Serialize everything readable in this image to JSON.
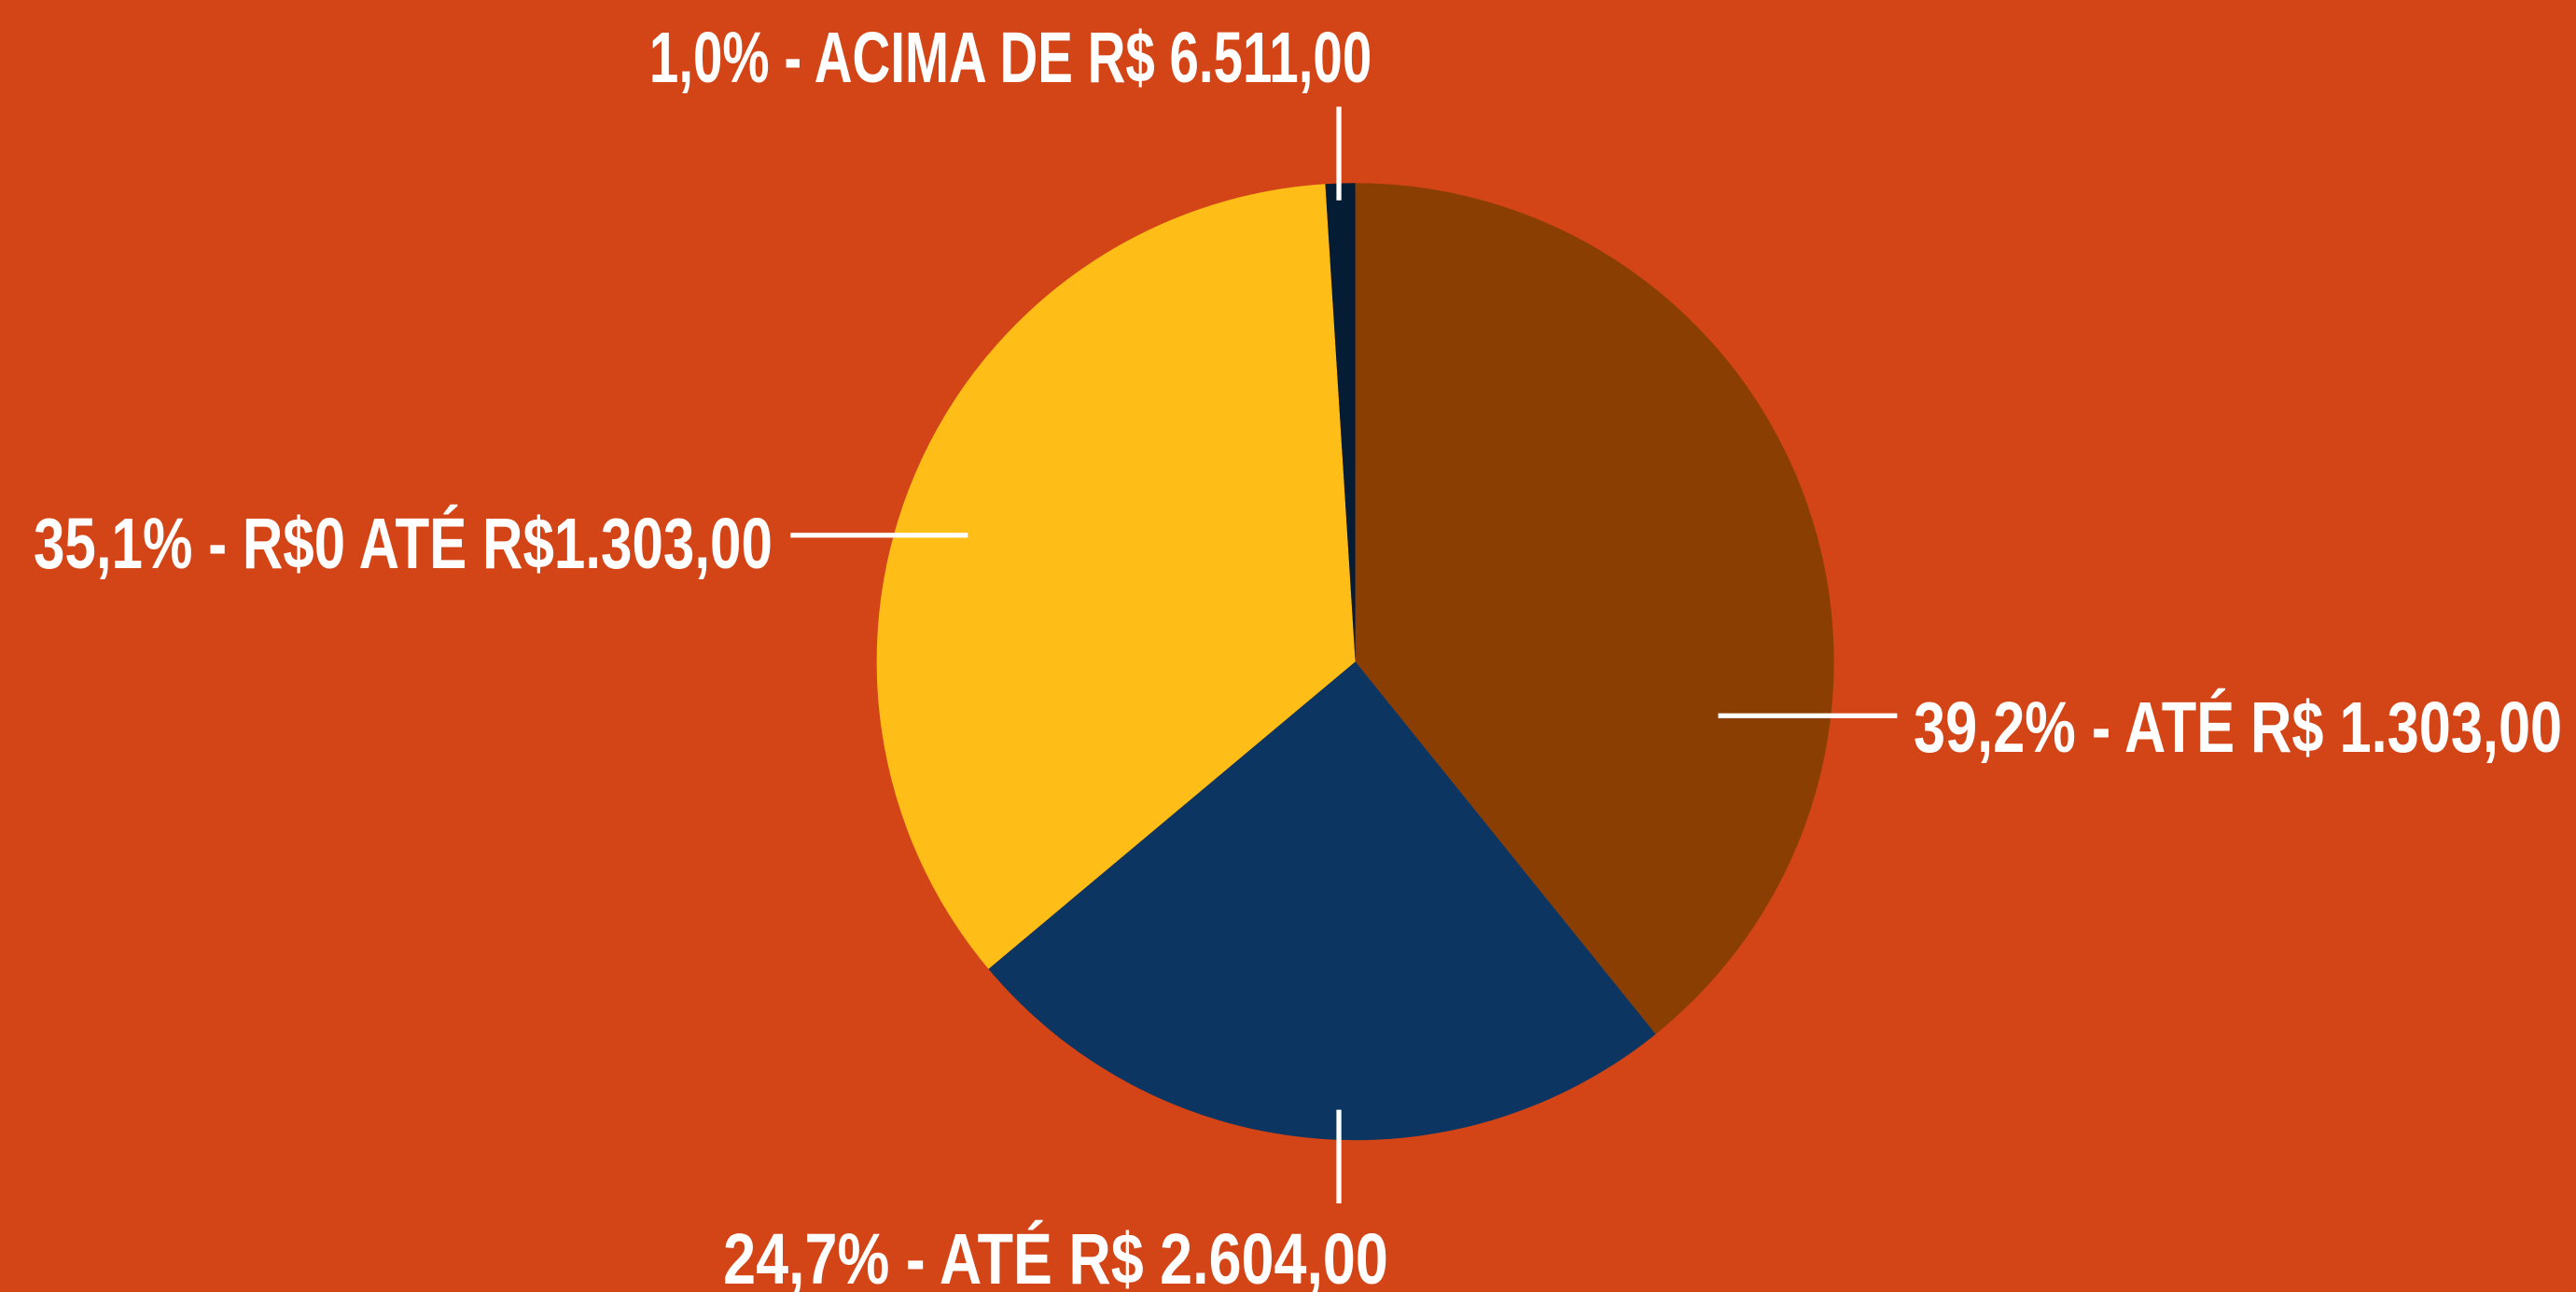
{
  "chart_data": {
    "type": "pie",
    "categories": [
      "ATÉ R$ 1.303,00",
      "ATÉ R$ 2.604,00",
      "R$0 ATÉ R$1.303,00",
      "ACIMA DE R$ 6.511,00"
    ],
    "values": [
      39.2,
      24.7,
      35.1,
      1.0
    ],
    "value_labels": [
      "39,2% - ATÉ R$ 1.303,00",
      "24,7% - ATÉ R$ 2.604,00",
      "35,1% - R$0 ATÉ R$1.303,00",
      "1,0% - ACIMA DE R$ 6.511,00"
    ],
    "colors": [
      "#8b3e02",
      "#0d3561",
      "#febe17",
      "#041c34"
    ]
  }
}
